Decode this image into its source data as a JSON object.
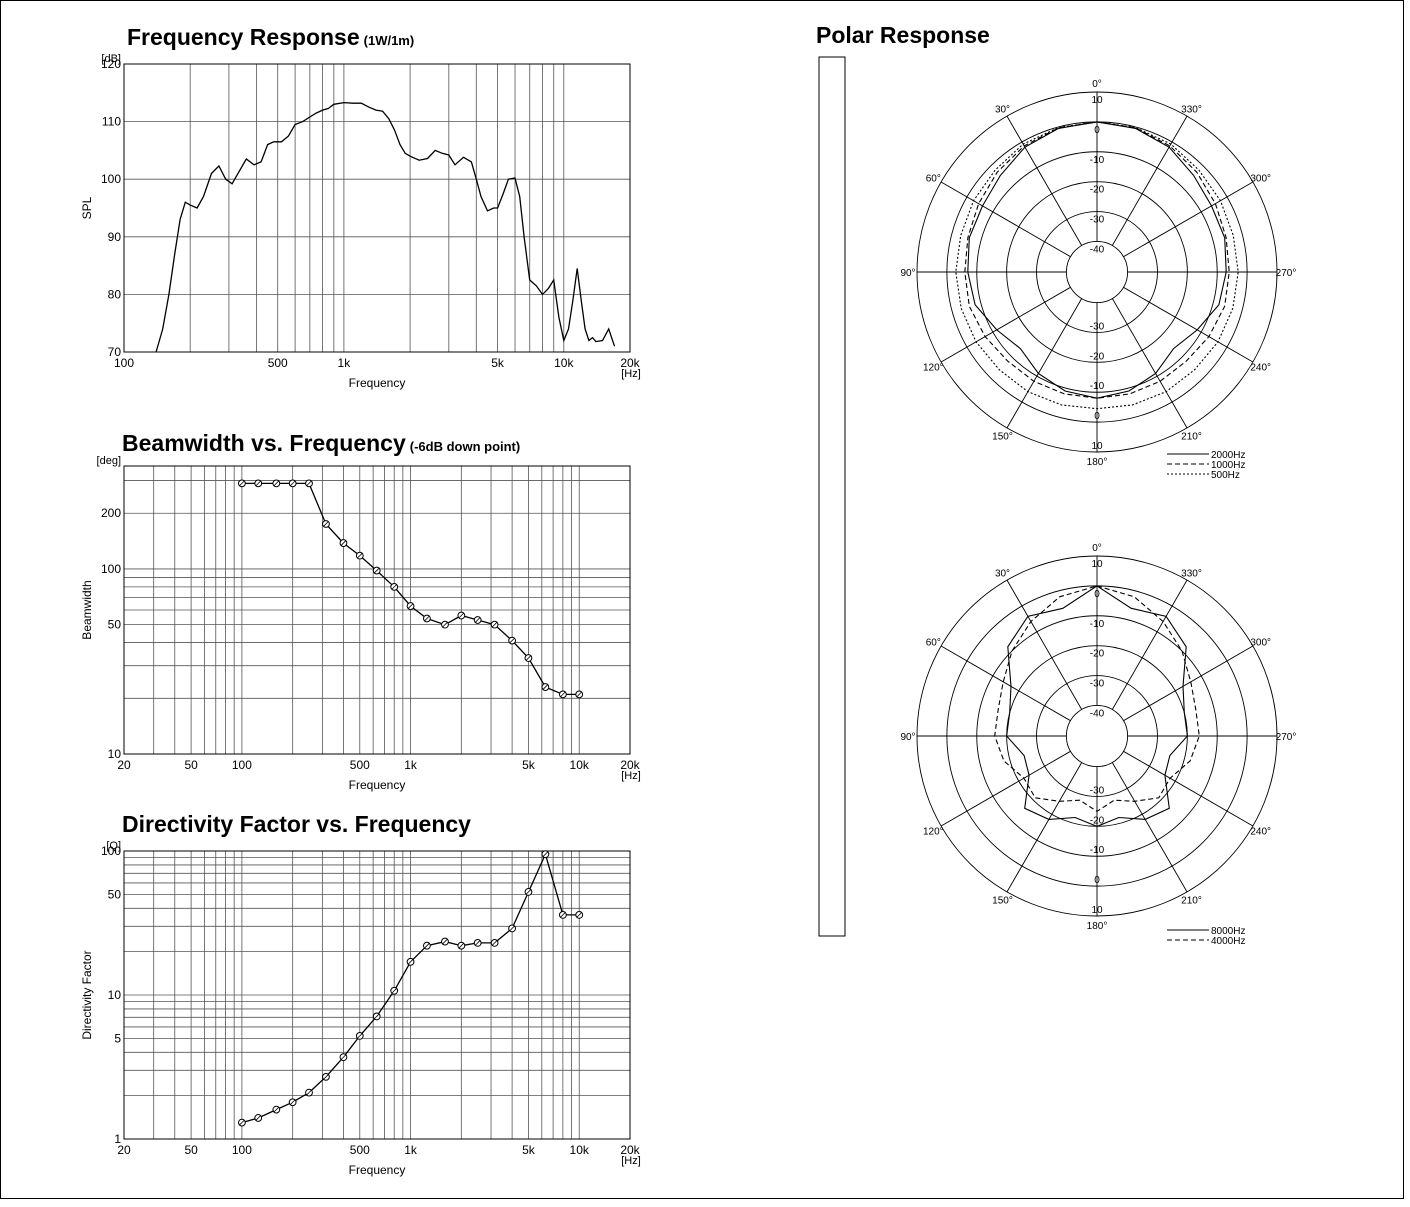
{
  "charts": {
    "freq_response": {
      "title": "Frequency Response",
      "subtitle": "(1W/1m)"
    },
    "beamwidth": {
      "title": "Beamwidth vs. Frequency",
      "subtitle": "(-6dB down point)"
    },
    "directivity": {
      "title": "Directivity Factor vs. Frequency",
      "subtitle": ""
    },
    "polar": {
      "title": "Polar Response"
    }
  },
  "chart_data": [
    {
      "type": "line",
      "title": "Frequency Response (1W/1m)",
      "xlabel": "Frequency",
      "ylabel": "SPL",
      "x_unit": "[Hz]",
      "y_unit": "[dB]",
      "x_scale": "log",
      "xlim": [
        100,
        20000
      ],
      "ylim": [
        70,
        120
      ],
      "x_ticks": [
        [
          100,
          "100"
        ],
        [
          500,
          "500"
        ],
        [
          1000,
          "1k"
        ],
        [
          5000,
          "5k"
        ],
        [
          10000,
          "10k"
        ],
        [
          20000,
          "20k"
        ]
      ],
      "y_ticks": [
        [
          70,
          "70"
        ],
        [
          80,
          "80"
        ],
        [
          90,
          "90"
        ],
        [
          100,
          "100"
        ],
        [
          110,
          "110"
        ],
        [
          120,
          "120"
        ]
      ],
      "grid": true,
      "x": [
        140,
        150,
        160,
        170,
        180,
        190,
        200,
        215,
        230,
        250,
        270,
        290,
        310,
        330,
        360,
        390,
        420,
        450,
        480,
        520,
        560,
        600,
        650,
        700,
        750,
        800,
        850,
        900,
        1000,
        1100,
        1200,
        1300,
        1400,
        1500,
        1600,
        1700,
        1800,
        1900,
        2000,
        2200,
        2400,
        2600,
        2800,
        3000,
        3200,
        3500,
        3800,
        4000,
        4200,
        4500,
        4800,
        5000,
        5300,
        5600,
        6000,
        6300,
        6600,
        7000,
        7500,
        8000,
        8500,
        9000,
        9500,
        10000,
        10500,
        11000,
        11500,
        12000,
        12500,
        13000,
        13500,
        14000,
        15000,
        16000,
        17000
      ],
      "values": [
        70,
        74,
        80,
        87,
        93,
        96,
        95.5,
        95,
        97,
        101,
        102.3,
        100,
        99.2,
        101,
        103.5,
        102.5,
        103,
        106,
        106.5,
        106.5,
        107.5,
        109.5,
        110,
        110.8,
        111.5,
        112,
        112.3,
        113,
        113.3,
        113.2,
        113.2,
        112.5,
        112,
        111.8,
        110.5,
        108.5,
        106,
        104.5,
        104,
        103.3,
        103.6,
        105,
        104.5,
        104.2,
        102.5,
        103.8,
        103,
        100,
        97,
        94.5,
        95,
        95,
        97.5,
        100,
        100.2,
        97,
        90,
        82.5,
        81.5,
        80,
        81,
        82.5,
        76,
        72,
        74,
        79,
        84.5,
        79,
        74,
        72,
        72.5,
        71.8,
        72,
        74,
        71
      ],
      "series": [
        {
          "name": ""
        }
      ]
    },
    {
      "type": "line",
      "title": "Beamwidth vs. Frequency (-6dB down point)",
      "xlabel": "Frequency",
      "ylabel": "Beamwidth",
      "x_unit": "[Hz]",
      "y_unit": "[deg]",
      "x_scale": "log",
      "y_scale": "log",
      "xlim": [
        20,
        20000
      ],
      "ylim": [
        10,
        360
      ],
      "x_ticks": [
        [
          20,
          "20"
        ],
        [
          50,
          "50"
        ],
        [
          100,
          "100"
        ],
        [
          500,
          "500"
        ],
        [
          1000,
          "1k"
        ],
        [
          5000,
          "5k"
        ],
        [
          10000,
          "10k"
        ],
        [
          20000,
          "20k"
        ]
      ],
      "y_ticks": [
        [
          10,
          "10"
        ],
        [
          50,
          "50"
        ],
        [
          100,
          "100"
        ],
        [
          200,
          "200"
        ]
      ],
      "grid": true,
      "markers": "circle",
      "x": [
        100,
        125,
        160,
        200,
        250,
        315,
        400,
        500,
        630,
        800,
        1000,
        1250,
        1600,
        2000,
        2500,
        3150,
        4000,
        5000,
        6300,
        8000,
        10000
      ],
      "values": [
        290,
        290,
        290,
        290,
        290,
        175,
        138,
        118,
        98,
        80,
        63,
        54,
        50,
        56,
        53,
        50,
        41,
        33,
        23,
        21,
        21
      ]
    },
    {
      "type": "line",
      "title": "Directivity Factor vs. Frequency",
      "xlabel": "Frequency",
      "ylabel": "Directivity Factor",
      "x_unit": "[Hz]",
      "y_unit": "[Q]",
      "x_scale": "log",
      "y_scale": "log",
      "xlim": [
        20,
        20000
      ],
      "ylim": [
        1,
        100
      ],
      "x_ticks": [
        [
          20,
          "20"
        ],
        [
          50,
          "50"
        ],
        [
          100,
          "100"
        ],
        [
          500,
          "500"
        ],
        [
          1000,
          "1k"
        ],
        [
          5000,
          "5k"
        ],
        [
          10000,
          "10k"
        ],
        [
          20000,
          "20k"
        ]
      ],
      "y_ticks": [
        [
          1,
          "1"
        ],
        [
          5,
          "5"
        ],
        [
          10,
          "10"
        ],
        [
          50,
          "50"
        ],
        [
          100,
          "100"
        ]
      ],
      "grid": true,
      "markers": "circle",
      "x": [
        100,
        125,
        160,
        200,
        250,
        315,
        400,
        500,
        630,
        800,
        1000,
        1250,
        1600,
        2000,
        2500,
        3150,
        4000,
        5000,
        6300,
        8000,
        10000
      ],
      "values": [
        1.3,
        1.4,
        1.6,
        1.8,
        2.1,
        2.7,
        3.7,
        5.2,
        7.1,
        10.7,
        17,
        22,
        23.5,
        22,
        23,
        23,
        29,
        52,
        95,
        36,
        36
      ]
    },
    {
      "type": "polar",
      "title": "Polar Response",
      "angle_labels": [
        "0°",
        "30°",
        "60°",
        "90°",
        "120°",
        "150°",
        "180°",
        "210°",
        "240°",
        "270°",
        "300°",
        "330°"
      ],
      "radial_labels": [
        "10",
        "0",
        "-10",
        "-20",
        "-30",
        "-40"
      ],
      "rlim": [
        -40,
        10
      ],
      "angles": [
        0,
        15,
        30,
        45,
        60,
        75,
        90,
        105,
        120,
        135,
        150,
        165,
        180
      ],
      "series": [
        {
          "name": "2000Hz",
          "style": "solid",
          "values": [
            0,
            -0.5,
            -2,
            -4.5,
            -6,
            -6,
            -7,
            -8,
            -11.5,
            -14,
            -11,
            -9,
            -8
          ]
        },
        {
          "name": "1000Hz",
          "style": "dashed",
          "values": [
            0,
            -0.3,
            -1.5,
            -3,
            -4.5,
            -5.5,
            -6,
            -6,
            -7,
            -8,
            -8,
            -8,
            -8
          ]
        },
        {
          "name": "500Hz",
          "style": "dotted",
          "values": [
            0,
            -0.2,
            -0.8,
            -2,
            -2.5,
            -3,
            -3,
            -3.2,
            -3.5,
            -4,
            -4,
            -4.2,
            -4.5
          ]
        }
      ]
    },
    {
      "type": "polar",
      "angle_labels": [
        "0°",
        "30°",
        "60°",
        "90°",
        "120°",
        "150°",
        "180°",
        "210°",
        "240°",
        "270°",
        "300°",
        "330°"
      ],
      "radial_labels": [
        "10",
        "0",
        "-10",
        "-20",
        "-30",
        "-40"
      ],
      "rlim": [
        -40,
        10
      ],
      "angles": [
        0,
        15,
        30,
        45,
        60,
        75,
        90,
        105,
        120,
        135,
        150,
        165,
        180
      ],
      "series": [
        {
          "name": "8000Hz",
          "style": "solid",
          "values": [
            0,
            -6,
            -4,
            -8,
            -17,
            -20,
            -20,
            -25,
            -24,
            -16,
            -18,
            -22,
            -20
          ]
        },
        {
          "name": "4000Hz",
          "style": "dashed",
          "values": [
            0,
            -2,
            -6,
            -10,
            -14,
            -16,
            -16,
            -18,
            -22,
            -21,
            -25,
            -28,
            -25
          ]
        }
      ]
    }
  ]
}
